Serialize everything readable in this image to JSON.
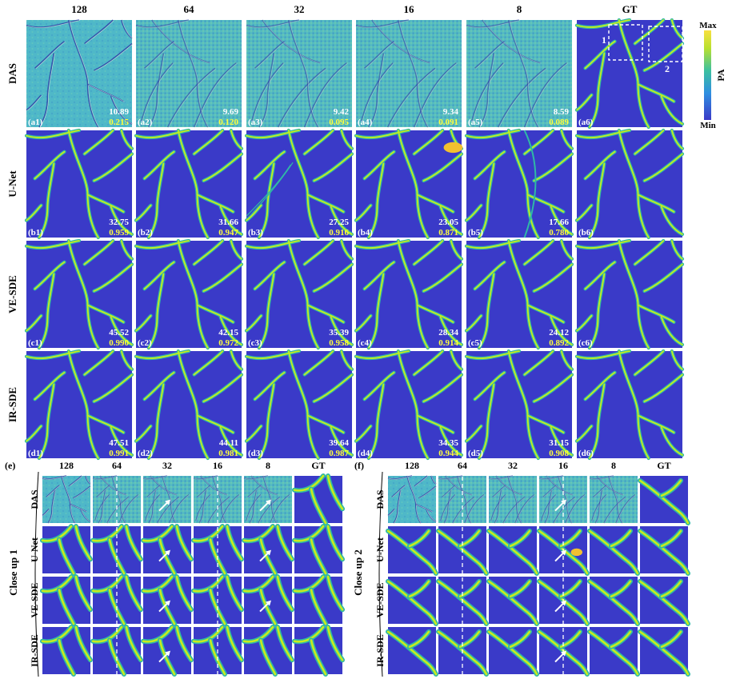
{
  "figure": {
    "columns": [
      "128",
      "64",
      "32",
      "16",
      "8",
      "GT"
    ],
    "rows": [
      {
        "label": "DAS",
        "prefix": "a",
        "style": "das",
        "psnr": [
          "10.89",
          "9.69",
          "9.42",
          "9.34",
          "8.59"
        ],
        "ssim": [
          "0.215",
          "0.120",
          "0.095",
          "0.091",
          "0.089"
        ]
      },
      {
        "label": "U-Net",
        "prefix": "b",
        "style": "unet",
        "psnr": [
          "32.75",
          "31.66",
          "27.25",
          "23.05",
          "17.66"
        ],
        "ssim": [
          "0.959",
          "0.947",
          "0.916",
          "0.871",
          "0.780"
        ]
      },
      {
        "label": "VE-SDE",
        "prefix": "c",
        "style": "clean",
        "psnr": [
          "45.52",
          "42.15",
          "35.39",
          "28.34",
          "24.12"
        ],
        "ssim": [
          "0.990",
          "0.972",
          "0.958",
          "0.914",
          "0.892"
        ]
      },
      {
        "label": "IR-SDE",
        "prefix": "d",
        "style": "clean",
        "psnr": [
          "47.51",
          "44.11",
          "39.64",
          "34.35",
          "31.15"
        ],
        "ssim": [
          "0.991",
          "0.981",
          "0.987",
          "0.944",
          "0.908"
        ]
      }
    ],
    "panel_labels": [
      [
        "(a1)",
        "(a2)",
        "(a3)",
        "(a4)",
        "(a5)",
        "(a6)"
      ],
      [
        "(b1)",
        "(b2)",
        "(b3)",
        "(b4)",
        "(b5)",
        "(b6)"
      ],
      [
        "(c1)",
        "(c2)",
        "(c3)",
        "(c4)",
        "(c5)",
        "(c6)"
      ],
      [
        "(d1)",
        "(d2)",
        "(d3)",
        "(d4)",
        "(d5)",
        "(d6)"
      ]
    ],
    "gt_boxes": [
      "1",
      "2"
    ],
    "colorbar": {
      "max": "Max",
      "min": "Min",
      "label": "PA"
    },
    "closeups": [
      {
        "letter": "(e)",
        "title": "Close up 1",
        "columns": [
          "128",
          "64",
          "32",
          "16",
          "8",
          "GT"
        ],
        "rows": [
          "DAS",
          "U-Net",
          "VE-SDE",
          "IR-SDE"
        ]
      },
      {
        "letter": "(f)",
        "title": "Close up 2",
        "columns": [
          "128",
          "64",
          "32",
          "16",
          "8",
          "GT"
        ],
        "rows": [
          "DAS",
          "U-Net",
          "VE-SDE",
          "IR-SDE"
        ]
      }
    ],
    "colors": {
      "background": "#3a3ac8",
      "vessel_edge": "#2fb8a6",
      "vessel_core": "#c8ec1e",
      "das_background": "#4fb8c8",
      "das_stripe": "#2c3ea6",
      "hot_spot": "#f2c030",
      "psnr_text": "#ffffff",
      "ssim_text": "#ffff3c",
      "divider": "#ffffff"
    }
  }
}
